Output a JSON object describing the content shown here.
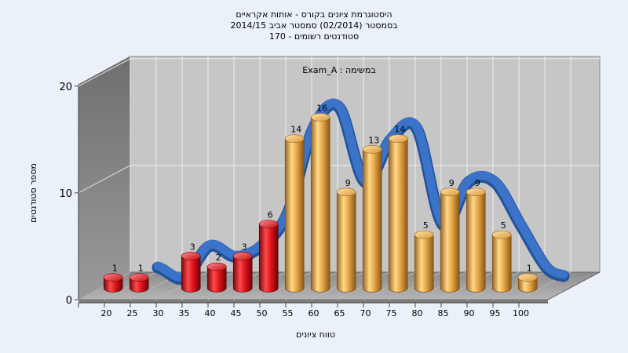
{
  "chart_data": {
    "type": "bar",
    "title_lines": [
      "היסטוגרמת ציונים בקורס - אותות אקראיים",
      "בסמסטר  (02/2014)  סמסטר אביב 2014/15",
      "סטודנטים רשומים - 170"
    ],
    "annotation": "Exam_A : במשימה",
    "xlabel": "טווח ציונים",
    "ylabel": "מספר סטודנטים",
    "ylim": [
      0,
      20
    ],
    "yticks": [
      "0",
      "10",
      "20"
    ],
    "categories": [
      "20",
      "25",
      "30",
      "35",
      "40",
      "45",
      "50",
      "55",
      "60",
      "65",
      "70",
      "75",
      "80",
      "85",
      "90",
      "95",
      "100"
    ],
    "values": [
      1,
      1,
      0,
      3,
      2,
      3,
      6,
      14,
      16,
      9,
      13,
      14,
      5,
      9,
      9,
      5,
      1
    ],
    "value_labels": [
      "1",
      "1",
      "",
      "3",
      "2",
      "3",
      "6",
      "14",
      "16",
      "9",
      "13",
      "14",
      "5",
      "9",
      "9",
      "5",
      "1"
    ],
    "bar_colors": [
      "red",
      "red",
      "red",
      "red",
      "red",
      "red",
      "red",
      "orange",
      "orange",
      "orange",
      "orange",
      "orange",
      "orange",
      "orange",
      "orange",
      "orange",
      "orange"
    ],
    "trend_line": "smoothed",
    "grid": true,
    "colors": {
      "red_bar": "#d8141a",
      "orange_bar": "#e8a94a",
      "trend": "#3a73c7",
      "back_wall": "#c6c6c6",
      "side_wall": "#8a8a8a",
      "floor": "#9e9e9e",
      "background": "#eaf1f8"
    }
  }
}
